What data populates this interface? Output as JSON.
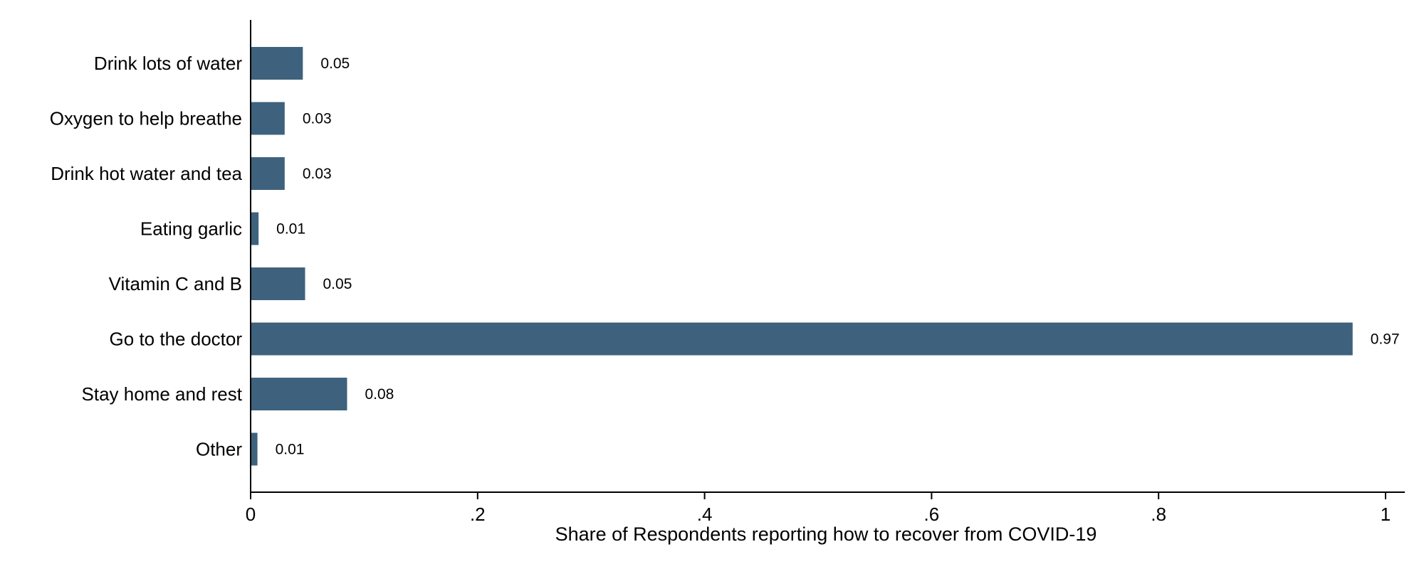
{
  "chart_data": {
    "type": "bar",
    "orientation": "horizontal",
    "categories": [
      "Drink lots of water",
      "Oxygen to help breathe",
      "Drink hot water and tea",
      "Eating garlic",
      "Vitamin C and B",
      "Go to the doctor",
      "Stay home and rest",
      "Other"
    ],
    "values": [
      0.046,
      0.03,
      0.03,
      0.007,
      0.048,
      0.971,
      0.085,
      0.006
    ],
    "value_labels": [
      "0.05",
      "0.03",
      "0.03",
      "0.01",
      "0.05",
      "0.97",
      "0.08",
      "0.01"
    ],
    "xlabel": "Share of Respondents reporting how to recover from COVID-19",
    "ylabel": "",
    "xlim": [
      0,
      1.017
    ],
    "xticks": [
      0,
      0.2,
      0.4,
      0.6,
      0.8,
      1
    ],
    "xtick_labels": [
      "0",
      ".2",
      ".4",
      ".6",
      ".8",
      "1"
    ],
    "bar_color": "#3e627d",
    "grid": false,
    "legend": "none"
  }
}
